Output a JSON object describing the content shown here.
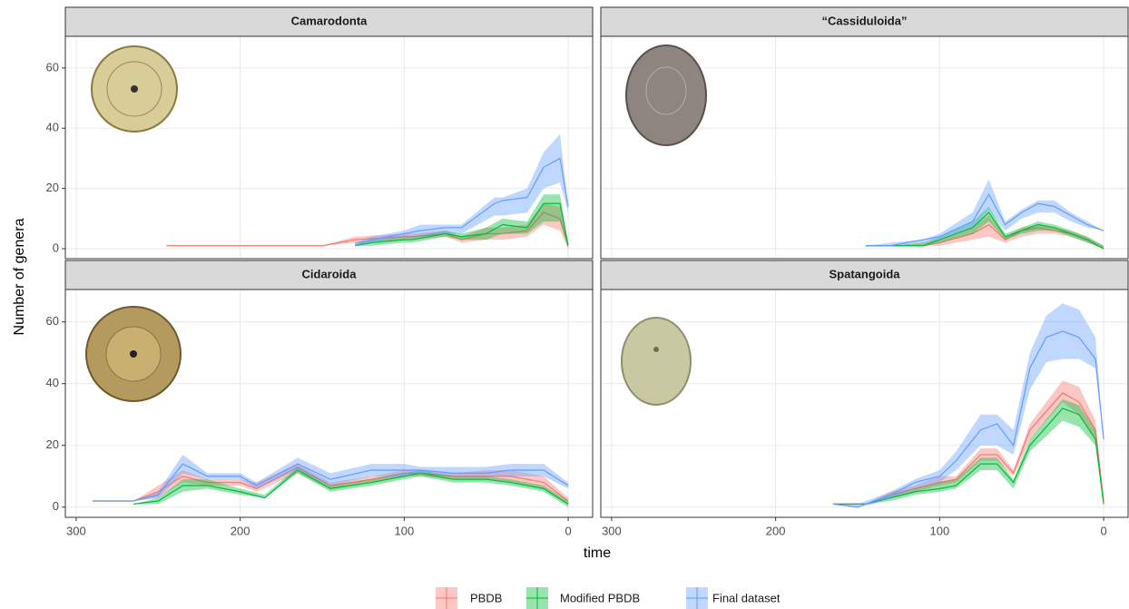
{
  "x_label": "time",
  "y_label": "Number of genera",
  "chart_data": [
    {
      "type": "ribbon",
      "title": "Camarodonta",
      "xlim": [
        306.6,
        -14.9
      ],
      "ylim": [
        -3.3,
        70.5
      ],
      "xticks": [
        300,
        200,
        100,
        0
      ],
      "yticks": [
        0,
        20,
        40,
        60
      ],
      "grid": true,
      "series": [
        {
          "name": "PBDB",
          "color": "#f8766d",
          "x": [
            245,
            150,
            130,
            100,
            95,
            75,
            65,
            50,
            40,
            25,
            15,
            5,
            0
          ],
          "values": [
            1,
            1,
            3,
            4,
            4,
            5,
            3,
            5,
            5,
            6,
            12,
            10,
            1
          ],
          "lower": [
            1,
            1,
            2,
            3,
            3,
            4,
            2,
            3,
            3,
            4,
            8,
            6,
            0
          ],
          "upper": [
            1,
            1,
            4,
            5,
            5,
            6,
            4,
            7,
            7,
            8,
            15,
            14,
            2
          ]
        },
        {
          "name": "Modified PBDB",
          "color": "#00ba38",
          "x": [
            130,
            120,
            100,
            95,
            75,
            65,
            50,
            40,
            25,
            15,
            5,
            0
          ],
          "values": [
            1,
            2,
            3,
            3,
            5,
            4,
            5,
            8,
            7,
            15,
            15,
            1
          ],
          "lower": [
            1,
            1,
            2,
            2,
            4,
            3,
            3,
            5,
            5,
            9,
            9,
            0
          ],
          "upper": [
            2,
            3,
            4,
            4,
            6,
            5,
            7,
            10,
            9,
            18,
            18,
            2
          ]
        },
        {
          "name": "Final dataset",
          "color": "#619cff",
          "x": [
            130,
            120,
            100,
            90,
            75,
            65,
            45,
            40,
            25,
            15,
            5,
            0
          ],
          "values": [
            1,
            3,
            5,
            6,
            7,
            7,
            15,
            16,
            17,
            27,
            30,
            14
          ],
          "lower": [
            1,
            2,
            4,
            4,
            5,
            5,
            11,
            11,
            12,
            20,
            22,
            12
          ],
          "upper": [
            2,
            4,
            6,
            8,
            8,
            8,
            17,
            17,
            20,
            32,
            38,
            14
          ]
        }
      ]
    },
    {
      "type": "ribbon",
      "title": "“Cassiduloida”",
      "xlim": [
        306.6,
        -14.9
      ],
      "ylim": [
        -3.3,
        70.5
      ],
      "xticks": [
        300,
        200,
        100,
        0
      ],
      "yticks": [
        0,
        20,
        40,
        60
      ],
      "grid": true,
      "series": [
        {
          "name": "PBDB",
          "color": "#f8766d",
          "x": [
            145,
            130,
            110,
            100,
            80,
            70,
            60,
            50,
            40,
            30,
            20,
            10,
            0
          ],
          "values": [
            1,
            1,
            1,
            2,
            5,
            8,
            3,
            6,
            7,
            6,
            5,
            3,
            0
          ],
          "lower": [
            1,
            1,
            1,
            1,
            3,
            4,
            2,
            4,
            5,
            5,
            4,
            2,
            0
          ],
          "upper": [
            1,
            1,
            2,
            3,
            7,
            11,
            4,
            7,
            8,
            7,
            6,
            4,
            1
          ]
        },
        {
          "name": "Modified PBDB",
          "color": "#00ba38",
          "x": [
            145,
            130,
            110,
            100,
            80,
            70,
            60,
            50,
            40,
            30,
            20,
            10,
            0
          ],
          "values": [
            1,
            1,
            1,
            3,
            7,
            12,
            4,
            6,
            8,
            7,
            5,
            3,
            0
          ],
          "lower": [
            1,
            1,
            1,
            2,
            5,
            9,
            3,
            5,
            6,
            6,
            4,
            2,
            0
          ],
          "upper": [
            1,
            1,
            2,
            4,
            9,
            14,
            5,
            7,
            9,
            8,
            6,
            4,
            1
          ]
        },
        {
          "name": "Final dataset",
          "color": "#619cff",
          "x": [
            145,
            130,
            110,
            100,
            80,
            70,
            60,
            50,
            40,
            30,
            20,
            10,
            0
          ],
          "values": [
            1,
            1,
            3,
            4,
            9,
            18,
            8,
            12,
            15,
            14,
            11,
            8,
            6
          ],
          "lower": [
            1,
            1,
            2,
            3,
            7,
            13,
            6,
            10,
            12,
            12,
            9,
            7,
            6
          ],
          "upper": [
            1,
            2,
            3,
            5,
            12,
            23,
            9,
            13,
            16,
            16,
            12,
            9,
            6
          ]
        }
      ]
    },
    {
      "type": "ribbon",
      "title": "Cidaroida",
      "xlim": [
        306.6,
        -14.9
      ],
      "ylim": [
        -3.3,
        70.5
      ],
      "xticks": [
        300,
        200,
        100,
        0
      ],
      "yticks": [
        0,
        20,
        40,
        60
      ],
      "grid": true,
      "series": [
        {
          "name": "PBDB",
          "color": "#f8766d",
          "x": [
            290,
            265,
            250,
            235,
            220,
            200,
            190,
            165,
            145,
            120,
            100,
            90,
            70,
            50,
            35,
            15,
            0
          ],
          "values": [
            2,
            2,
            5,
            10,
            8,
            8,
            6,
            13,
            7,
            9,
            11,
            11,
            10,
            10,
            10,
            8,
            2
          ],
          "lower": [
            2,
            2,
            3,
            8,
            7,
            7,
            5,
            11,
            6,
            8,
            10,
            10,
            9,
            9,
            8,
            6,
            1
          ],
          "upper": [
            2,
            2,
            7,
            12,
            9,
            9,
            8,
            14,
            8,
            10,
            12,
            12,
            11,
            12,
            12,
            10,
            3
          ]
        },
        {
          "name": "Modified PBDB",
          "color": "#00ba38",
          "x": [
            265,
            250,
            235,
            220,
            200,
            185,
            165,
            145,
            120,
            100,
            90,
            70,
            50,
            35,
            15,
            0
          ],
          "values": [
            1,
            2,
            7,
            7,
            5,
            3,
            12,
            6,
            8,
            10,
            11,
            9,
            9,
            8,
            6,
            1
          ],
          "lower": [
            1,
            1,
            5,
            6,
            4,
            3,
            11,
            5,
            7,
            9,
            10,
            8,
            8,
            7,
            5,
            0
          ],
          "upper": [
            1,
            3,
            9,
            9,
            6,
            4,
            13,
            7,
            9,
            11,
            12,
            10,
            10,
            9,
            7,
            2
          ]
        },
        {
          "name": "Final dataset",
          "color": "#619cff",
          "x": [
            290,
            265,
            250,
            235,
            220,
            200,
            190,
            165,
            145,
            120,
            100,
            90,
            70,
            50,
            35,
            15,
            0
          ],
          "values": [
            2,
            2,
            4,
            14,
            10,
            10,
            7,
            14,
            9,
            12,
            12,
            12,
            11,
            11,
            12,
            12,
            7
          ],
          "lower": [
            2,
            2,
            3,
            11,
            9,
            9,
            6,
            12,
            7,
            10,
            10,
            11,
            10,
            10,
            10,
            10,
            6
          ],
          "upper": [
            2,
            2,
            5,
            17,
            11,
            11,
            8,
            16,
            11,
            14,
            14,
            13,
            13,
            13,
            14,
            14,
            8
          ]
        }
      ]
    },
    {
      "type": "ribbon",
      "title": "Spatangoida",
      "xlim": [
        306.6,
        -14.9
      ],
      "ylim": [
        -3.3,
        70.5
      ],
      "xticks": [
        300,
        200,
        100,
        0
      ],
      "yticks": [
        0,
        20,
        40,
        60
      ],
      "grid": true,
      "series": [
        {
          "name": "PBDB",
          "color": "#f8766d",
          "x": [
            165,
            145,
            130,
            115,
            100,
            90,
            75,
            65,
            55,
            45,
            25,
            15,
            5,
            0
          ],
          "values": [
            1,
            1,
            4,
            6,
            8,
            9,
            17,
            17,
            11,
            25,
            37,
            34,
            25,
            2
          ],
          "lower": [
            1,
            1,
            3,
            5,
            7,
            8,
            15,
            15,
            10,
            22,
            34,
            30,
            22,
            1
          ],
          "upper": [
            1,
            1,
            5,
            7,
            10,
            10,
            19,
            19,
            12,
            27,
            41,
            39,
            28,
            3
          ]
        },
        {
          "name": "Modified PBDB",
          "color": "#00ba38",
          "x": [
            165,
            145,
            130,
            115,
            100,
            90,
            75,
            65,
            55,
            45,
            25,
            15,
            5,
            0
          ],
          "values": [
            1,
            1,
            3,
            5,
            6,
            7,
            14,
            14,
            8,
            20,
            32,
            30,
            22,
            1
          ],
          "lower": [
            1,
            1,
            2,
            4,
            5,
            6,
            12,
            12,
            6,
            18,
            28,
            26,
            20,
            0
          ],
          "upper": [
            1,
            1,
            4,
            6,
            8,
            9,
            16,
            16,
            9,
            22,
            35,
            33,
            25,
            2
          ]
        },
        {
          "name": "Final dataset",
          "color": "#619cff",
          "x": [
            165,
            150,
            140,
            130,
            115,
            100,
            90,
            75,
            65,
            55,
            45,
            35,
            25,
            15,
            5,
            0
          ],
          "values": [
            1,
            0,
            2,
            4,
            8,
            10,
            15,
            25,
            27,
            20,
            45,
            55,
            57,
            55,
            48,
            22
          ],
          "lower": [
            1,
            0,
            1,
            3,
            6,
            8,
            12,
            20,
            20,
            17,
            38,
            47,
            48,
            48,
            45,
            21
          ],
          "upper": [
            1,
            1,
            3,
            5,
            9,
            12,
            18,
            30,
            30,
            25,
            50,
            62,
            66,
            64,
            55,
            22
          ]
        }
      ]
    }
  ]
}
